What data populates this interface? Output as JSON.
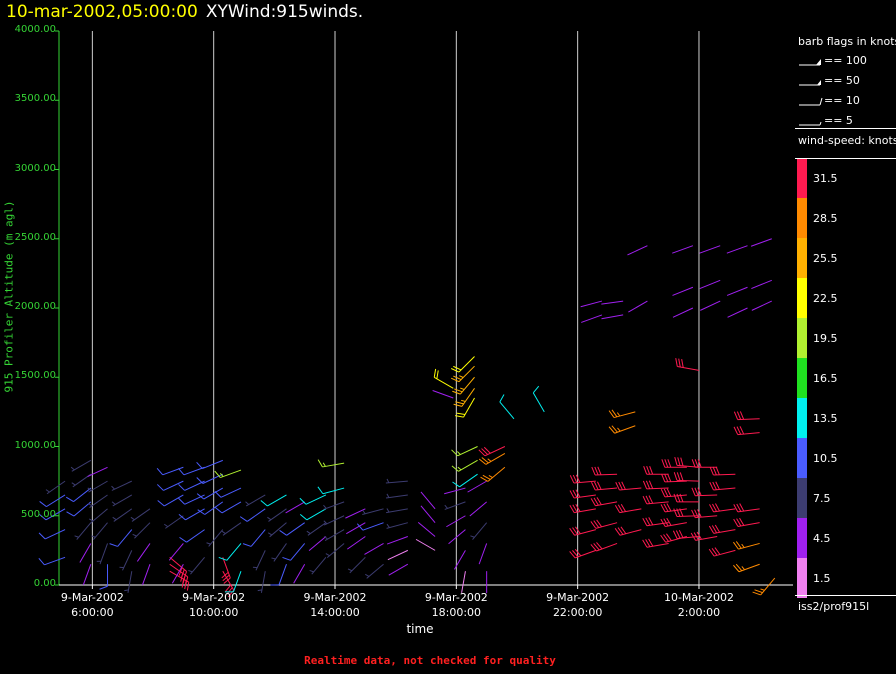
{
  "header": {
    "datetime": "10-mar-2002,05:00:00",
    "product": "XYWind:915winds."
  },
  "colors": {
    "axis": "#35d435",
    "gridline": "#cfcfcf",
    "footer": "#ff2020",
    "title_date": "#ffff00"
  },
  "chart_data": {
    "type": "wind-barb time-height",
    "ylabel": "915 Profiler Altitude (m agl)",
    "xlabel": "time",
    "ylim": [
      0,
      4000
    ],
    "yticks": [
      "4000.00",
      "3500.00",
      "3000.00",
      "2500.00",
      "2000.00",
      "1500.00",
      "1000.00",
      "500.00",
      "0.00"
    ],
    "xticks": [
      {
        "date": "9-Mar-2002",
        "time": "6:00:00",
        "hours": 6
      },
      {
        "date": "9-Mar-2002",
        "time": "10:00:00",
        "hours": 10
      },
      {
        "date": "9-Mar-2002",
        "time": "14:00:00",
        "hours": 14
      },
      {
        "date": "9-Mar-2002",
        "time": "18:00:00",
        "hours": 18
      },
      {
        "date": "9-Mar-2002",
        "time": "22:00:00",
        "hours": 22
      },
      {
        "date": "10-Mar-2002",
        "time": "2:00:00",
        "hours": 26
      }
    ],
    "xlim_hours": [
      4.9,
      29.1
    ],
    "gridlines_at_ticks": true,
    "profiles": [
      {
        "t": 5.1,
        "obs": [
          [
            200,
            10.5,
            250
          ],
          [
            400,
            10.5,
            245
          ],
          [
            550,
            10.5,
            240
          ],
          [
            650,
            10.5,
            238
          ],
          [
            750,
            7.5,
            235
          ]
        ]
      },
      {
        "t": 5.95,
        "obs": [
          [
            150,
            4.5,
            200
          ],
          [
            300,
            4.5,
            210
          ],
          [
            450,
            7.5,
            220
          ],
          [
            600,
            10.5,
            230
          ],
          [
            700,
            10.5,
            232
          ],
          [
            800,
            7.5,
            235
          ],
          [
            900,
            7.5,
            240
          ]
        ]
      },
      {
        "t": 6.5,
        "obs": [
          [
            150,
            10.5,
            180
          ],
          [
            300,
            7.5,
            200
          ],
          [
            450,
            7.5,
            220
          ],
          [
            550,
            7.5,
            230
          ],
          [
            650,
            7.5,
            235
          ],
          [
            750,
            7.5,
            240
          ],
          [
            850,
            4.5,
            245
          ]
        ]
      },
      {
        "t": 7.3,
        "obs": [
          [
            100,
            7.5,
            190
          ],
          [
            250,
            7.5,
            205
          ],
          [
            400,
            10.5,
            220
          ],
          [
            550,
            7.5,
            235
          ],
          [
            650,
            7.5,
            240
          ],
          [
            750,
            7.5,
            245
          ]
        ]
      },
      {
        "t": 7.9,
        "obs": [
          [
            150,
            4.5,
            200
          ],
          [
            300,
            4.5,
            215
          ],
          [
            450,
            7.5,
            225
          ],
          [
            550,
            7.5,
            235
          ]
        ]
      },
      {
        "t": 8.55,
        "obs": [
          [
            100,
            31.5,
            120
          ],
          [
            150,
            31.5,
            125
          ],
          [
            200,
            31.5,
            130
          ]
        ]
      },
      {
        "t": 9.0,
        "obs": [
          [
            150,
            4.5,
            210
          ],
          [
            300,
            4.5,
            220
          ],
          [
            500,
            7.5,
            235
          ],
          [
            650,
            10.5,
            240
          ],
          [
            750,
            10.5,
            245
          ],
          [
            850,
            10.5,
            250
          ]
        ]
      },
      {
        "t": 9.7,
        "obs": [
          [
            200,
            7.5,
            220
          ],
          [
            400,
            10.5,
            235
          ],
          [
            550,
            10.5,
            240
          ],
          [
            650,
            10.5,
            245
          ],
          [
            750,
            10.5,
            245
          ],
          [
            850,
            10.5,
            250
          ]
        ]
      },
      {
        "t": 10.3,
        "obs": [
          [
            100,
            31.5,
            150
          ],
          [
            200,
            31.5,
            160
          ],
          [
            400,
            7.5,
            220
          ],
          [
            600,
            10.5,
            235
          ],
          [
            700,
            10.5,
            240
          ],
          [
            800,
            10.5,
            245
          ],
          [
            900,
            10.5,
            248
          ]
        ]
      },
      {
        "t": 10.9,
        "obs": [
          [
            100,
            13.5,
            200
          ],
          [
            300,
            13.5,
            220
          ],
          [
            450,
            7.5,
            235
          ],
          [
            600,
            10.5,
            240
          ],
          [
            700,
            10.5,
            245
          ],
          [
            830,
            19.5,
            250
          ]
        ]
      },
      {
        "t": 11.7,
        "obs": [
          [
            100,
            7.5,
            190
          ],
          [
            250,
            7.5,
            205
          ],
          [
            400,
            10.5,
            220
          ],
          [
            550,
            10.5,
            235
          ],
          [
            650,
            7.5,
            240
          ]
        ]
      },
      {
        "t": 12.4,
        "obs": [
          [
            150,
            10.5,
            200
          ],
          [
            300,
            7.5,
            215
          ],
          [
            450,
            7.5,
            230
          ],
          [
            550,
            7.5,
            235
          ],
          [
            650,
            13.5,
            240
          ]
        ]
      },
      {
        "t": 13.0,
        "obs": [
          [
            150,
            4.5,
            210
          ],
          [
            300,
            10.5,
            220
          ],
          [
            450,
            10.5,
            235
          ],
          [
            600,
            4.5,
            240
          ]
        ]
      },
      {
        "t": 13.7,
        "obs": [
          [
            200,
            7.5,
            220
          ],
          [
            350,
            4.5,
            230
          ],
          [
            450,
            7.5,
            235
          ],
          [
            550,
            13.5,
            240
          ],
          [
            650,
            13.5,
            245
          ]
        ]
      },
      {
        "t": 14.3,
        "obs": [
          [
            300,
            7.5,
            230
          ],
          [
            400,
            7.5,
            240
          ],
          [
            500,
            7.5,
            245
          ],
          [
            600,
            7.5,
            250
          ],
          [
            700,
            13.5,
            255
          ],
          [
            880,
            19.5,
            260
          ]
        ]
      },
      {
        "t": 15.0,
        "obs": [
          [
            200,
            7.5,
            225
          ],
          [
            350,
            4.5,
            235
          ],
          [
            450,
            4.5,
            240
          ],
          [
            550,
            4.5,
            245
          ]
        ]
      },
      {
        "t": 15.6,
        "obs": [
          [
            150,
            7.5,
            230
          ],
          [
            300,
            4.5,
            240
          ],
          [
            450,
            10.5,
            250
          ],
          [
            550,
            7.5,
            255
          ]
        ]
      },
      {
        "t": 16.4,
        "obs": [
          [
            150,
            4.5,
            240
          ],
          [
            250,
            1.5,
            245
          ],
          [
            350,
            4.5,
            250
          ],
          [
            450,
            7.5,
            255
          ],
          [
            550,
            7.5,
            260
          ],
          [
            650,
            7.5,
            262
          ],
          [
            750,
            7.5,
            265
          ]
        ]
      },
      {
        "t": 17.3,
        "obs": [
          [
            250,
            1.5,
            300
          ],
          [
            350,
            4.5,
            310
          ],
          [
            450,
            4.5,
            320
          ],
          [
            550,
            4.5,
            320
          ]
        ]
      },
      {
        "t": 17.9,
        "obs": [
          [
            1350,
            4.5,
            290
          ],
          [
            1420,
            22.5,
            300
          ]
        ]
      },
      {
        "t": 18.3,
        "obs": [
          [
            100,
            1.5,
            190
          ],
          [
            250,
            4.5,
            210
          ],
          [
            400,
            4.5,
            230
          ],
          [
            500,
            4.5,
            240
          ],
          [
            600,
            7.5,
            250
          ],
          [
            700,
            4.5,
            255
          ]
        ]
      },
      {
        "t": 18.6,
        "obs": [
          [
            1350,
            22.5,
            210
          ],
          [
            1420,
            25.5,
            215
          ],
          [
            1500,
            25.5,
            220
          ],
          [
            1580,
            25.5,
            225
          ],
          [
            1650,
            22.5,
            225
          ]
        ]
      },
      {
        "t": 18.7,
        "obs": [
          [
            800,
            13.5,
            235
          ],
          [
            900,
            19.5,
            240
          ],
          [
            1000,
            19.5,
            245
          ]
        ]
      },
      {
        "t": 19.0,
        "obs": [
          [
            100,
            4.5,
            180
          ],
          [
            300,
            4.5,
            200
          ],
          [
            450,
            7.5,
            220
          ],
          [
            600,
            4.5,
            230
          ],
          [
            750,
            4.5,
            240
          ]
        ]
      },
      {
        "t": 19.6,
        "obs": [
          [
            850,
            28.5,
            230
          ],
          [
            950,
            28.5,
            240
          ],
          [
            1000,
            31.5,
            245
          ]
        ]
      },
      {
        "t": 19.9,
        "obs": [
          [
            1200,
            13.5,
            320
          ]
        ]
      },
      {
        "t": 20.9,
        "obs": [
          [
            1250,
            13.5,
            330
          ]
        ]
      },
      {
        "t": 22.6,
        "obs": [
          [
            250,
            31.5,
            250
          ],
          [
            400,
            31.5,
            255
          ],
          [
            550,
            31.5,
            260
          ],
          [
            650,
            31.5,
            262
          ],
          [
            750,
            31.5,
            265
          ]
        ]
      },
      {
        "t": 22.8,
        "obs": [
          [
            1950,
            4.5,
            250
          ],
          [
            2050,
            4.5,
            255
          ]
        ]
      },
      {
        "t": 23.3,
        "obs": [
          [
            300,
            31.5,
            250
          ],
          [
            450,
            31.5,
            255
          ],
          [
            600,
            31.5,
            260
          ],
          [
            700,
            31.5,
            265
          ],
          [
            800,
            31.5,
            268
          ]
        ]
      },
      {
        "t": 23.5,
        "obs": [
          [
            1950,
            4.5,
            260
          ],
          [
            2050,
            4.5,
            262
          ]
        ]
      },
      {
        "t": 23.9,
        "obs": [
          [
            1150,
            28.5,
            250
          ],
          [
            1250,
            28.5,
            255
          ]
        ]
      },
      {
        "t": 24.1,
        "obs": [
          [
            400,
            31.5,
            255
          ],
          [
            550,
            31.5,
            260
          ],
          [
            700,
            31.5,
            265
          ]
        ]
      },
      {
        "t": 24.3,
        "obs": [
          [
            2050,
            4.5,
            240
          ],
          [
            2450,
            4.5,
            245
          ]
        ]
      },
      {
        "t": 25.0,
        "obs": [
          [
            300,
            31.5,
            260
          ],
          [
            450,
            31.5,
            262
          ],
          [
            600,
            31.5,
            265
          ],
          [
            700,
            31.5,
            268
          ],
          [
            800,
            31.5,
            270
          ]
        ]
      },
      {
        "t": 25.6,
        "obs": [
          [
            350,
            31.5,
            255
          ],
          [
            450,
            31.5,
            260
          ],
          [
            550,
            31.5,
            262
          ],
          [
            650,
            31.5,
            265
          ],
          [
            750,
            31.5,
            268
          ],
          [
            850,
            31.5,
            270
          ]
        ]
      },
      {
        "t": 25.8,
        "obs": [
          [
            2000,
            4.5,
            245
          ],
          [
            2150,
            4.5,
            248
          ],
          [
            2450,
            4.5,
            250
          ]
        ]
      },
      {
        "t": 26.0,
        "obs": [
          [
            350,
            31.5,
            265
          ],
          [
            500,
            31.5,
            268
          ],
          [
            600,
            31.5,
            270
          ],
          [
            750,
            31.5,
            272
          ],
          [
            850,
            31.5,
            275
          ],
          [
            1550,
            31.5,
            280
          ]
        ]
      },
      {
        "t": 26.6,
        "obs": [
          [
            350,
            31.5,
            260
          ],
          [
            500,
            31.5,
            265
          ],
          [
            650,
            31.5,
            268
          ],
          [
            850,
            31.5,
            270
          ]
        ]
      },
      {
        "t": 26.7,
        "obs": [
          [
            2050,
            4.5,
            245
          ],
          [
            2200,
            4.5,
            248
          ],
          [
            2450,
            4.5,
            250
          ]
        ]
      },
      {
        "t": 27.2,
        "obs": [
          [
            250,
            31.5,
            255
          ],
          [
            400,
            31.5,
            260
          ],
          [
            550,
            31.5,
            262
          ],
          [
            700,
            31.5,
            265
          ],
          [
            800,
            31.5,
            268
          ]
        ]
      },
      {
        "t": 27.6,
        "obs": [
          [
            2000,
            4.5,
            245
          ],
          [
            2150,
            4.5,
            248
          ],
          [
            2450,
            4.5,
            250
          ]
        ]
      },
      {
        "t": 28.0,
        "obs": [
          [
            150,
            28.5,
            250
          ],
          [
            300,
            28.5,
            255
          ],
          [
            450,
            31.5,
            260
          ],
          [
            550,
            31.5,
            262
          ],
          [
            1100,
            31.5,
            265
          ],
          [
            1200,
            31.5,
            268
          ]
        ]
      },
      {
        "t": 28.4,
        "obs": [
          [
            2050,
            4.5,
            245
          ],
          [
            2200,
            4.5,
            248
          ],
          [
            2500,
            4.5,
            250
          ]
        ]
      },
      {
        "t": 28.5,
        "obs": [
          [
            50,
            28.5,
            220
          ]
        ]
      }
    ]
  },
  "legend": {
    "barb_title": "barb flags in knots",
    "barb_entries": [
      {
        "label": "== 100",
        "speed": 100
      },
      {
        "label": "== 50",
        "speed": 50
      },
      {
        "label": "== 10",
        "speed": 10
      },
      {
        "label": "== 5",
        "speed": 5
      }
    ],
    "colorbar_title": "wind-speed: knots",
    "colorbar": [
      {
        "label": "31.5",
        "color": "#ff1a50"
      },
      {
        "label": "28.5",
        "color": "#ff8a00"
      },
      {
        "label": "25.5",
        "color": "#ffb000"
      },
      {
        "label": "22.5",
        "color": "#ffff00"
      },
      {
        "label": "19.5",
        "color": "#b0f030"
      },
      {
        "label": "16.5",
        "color": "#20e020"
      },
      {
        "label": "13.5",
        "color": "#00f0f0"
      },
      {
        "label": "10.5",
        "color": "#4a5cff"
      },
      {
        "label": "7.5",
        "color": "#3c3c70"
      },
      {
        "label": "4.5",
        "color": "#a020f0"
      },
      {
        "label": "1.5",
        "color": "#f080f0"
      }
    ],
    "station": "iss2/prof915l"
  },
  "footer": "Realtime data, not checked for quality"
}
